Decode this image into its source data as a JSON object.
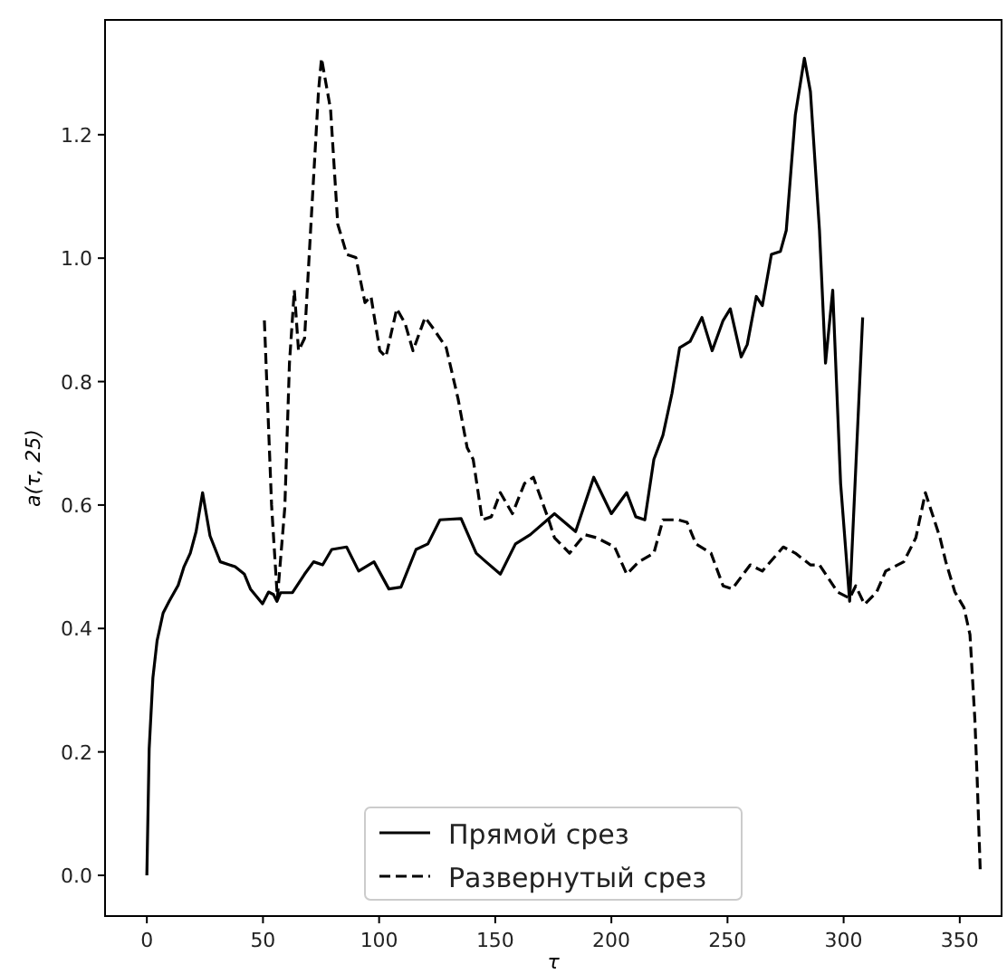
{
  "chart_data": {
    "type": "line",
    "xlabel": "τ",
    "ylabel": "a(τ, 25)",
    "xlim": [
      -18,
      368
    ],
    "ylim": [
      -0.066,
      1.386
    ],
    "xticks": [
      0,
      50,
      100,
      150,
      200,
      250,
      300,
      350
    ],
    "yticks": [
      {
        "value": 0,
        "label": "0.0"
      },
      0.2,
      0.4,
      0.6,
      0.8,
      {
        "value": 1,
        "label": "1.0"
      },
      1.2
    ],
    "grid": false,
    "legend": "bottom",
    "marker": "none",
    "series": [
      {
        "name": "Прямой срез",
        "color": "#000000",
        "line_style": "solid",
        "x": [
          0,
          1,
          2.6,
          4.4,
          7,
          9.6,
          13.5,
          16,
          18.7,
          21.2,
          24,
          27.2,
          31.6,
          38,
          42,
          44.6,
          49.8,
          52.4,
          54.5,
          56,
          57.6,
          62.7,
          67.9,
          71.8,
          75.7,
          79.6,
          86,
          91.2,
          97.8,
          104.2,
          109.4,
          115.9,
          121,
          126.2,
          135.3,
          141.8,
          146,
          152.2,
          158.7,
          165.1,
          175.5,
          184.6,
          192.4,
          200,
          206.6,
          210.5,
          214.4,
          218.3,
          222.2,
          226.1,
          229.4,
          233.9,
          236.4,
          239,
          243.4,
          248.1,
          251.2,
          255.9,
          258.5,
          262.4,
          265,
          268.9,
          272.8,
          275.3,
          279.2,
          283.1,
          285.7,
          289.6,
          292.2,
          295.3,
          298.7,
          302.6,
          308.2
        ],
        "values": [
          0,
          0.205,
          0.32,
          0.38,
          0.425,
          0.444,
          0.47,
          0.5,
          0.522,
          0.557,
          0.62,
          0.55,
          0.508,
          0.5,
          0.488,
          0.464,
          0.44,
          0.459,
          0.455,
          0.444,
          0.458,
          0.458,
          0.488,
          0.508,
          0.503,
          0.528,
          0.532,
          0.493,
          0.508,
          0.464,
          0.467,
          0.528,
          0.537,
          0.576,
          0.578,
          0.522,
          0.508,
          0.488,
          0.537,
          0.552,
          0.586,
          0.557,
          0.645,
          0.586,
          0.62,
          0.581,
          0.576,
          0.674,
          0.713,
          0.781,
          0.855,
          0.865,
          0.884,
          0.904,
          0.85,
          0.899,
          0.918,
          0.84,
          0.86,
          0.938,
          0.923,
          1.006,
          1.011,
          1.045,
          1.232,
          1.324,
          1.27,
          1.045,
          0.83,
          0.948,
          0.635,
          0.444,
          0.904
        ]
      },
      {
        "name": "Развернутый срез",
        "color": "#000000",
        "line_style": "dashed",
        "x": [
          50.6,
          53.7,
          56.2,
          59.4,
          61.4,
          63.5,
          65.3,
          67.9,
          70.5,
          73.9,
          75.2,
          79.1,
          82.2,
          86.1,
          90,
          93.9,
          96.5,
          100.3,
          102.9,
          107.6,
          111.2,
          114.6,
          119.8,
          123.7,
          128.9,
          134,
          137.9,
          140.5,
          144.4,
          148.3,
          152.2,
          157.4,
          162.6,
          166.4,
          173,
          175.5,
          182,
          188.5,
          193.7,
          201.4,
          206.6,
          211.8,
          218.3,
          222.2,
          228.7,
          232.6,
          236.4,
          242.9,
          248.1,
          252,
          259.8,
          265,
          274,
          279.2,
          285.7,
          289.6,
          297.4,
          302.6,
          305.2,
          309,
          314.2,
          318.1,
          325.9,
          331.1,
          335.2,
          341.5,
          344,
          347.9,
          351.8,
          354.4,
          356.5,
          357.5,
          358.8
        ],
        "values": [
          0.899,
          0.6,
          0.449,
          0.596,
          0.83,
          0.948,
          0.85,
          0.87,
          1.045,
          1.27,
          1.324,
          1.241,
          1.055,
          1.006,
          1.001,
          0.928,
          0.938,
          0.85,
          0.84,
          0.918,
          0.894,
          0.85,
          0.904,
          0.884,
          0.855,
          0.772,
          0.693,
          0.674,
          0.576,
          0.581,
          0.62,
          0.586,
          0.635,
          0.645,
          0.576,
          0.547,
          0.522,
          0.552,
          0.547,
          0.532,
          0.488,
          0.508,
          0.522,
          0.576,
          0.576,
          0.572,
          0.537,
          0.522,
          0.469,
          0.464,
          0.503,
          0.493,
          0.532,
          0.522,
          0.503,
          0.503,
          0.459,
          0.449,
          0.469,
          0.439,
          0.459,
          0.493,
          0.508,
          0.547,
          0.62,
          0.547,
          0.508,
          0.459,
          0.434,
          0.39,
          0.253,
          0.156,
          0.01
        ]
      }
    ]
  }
}
